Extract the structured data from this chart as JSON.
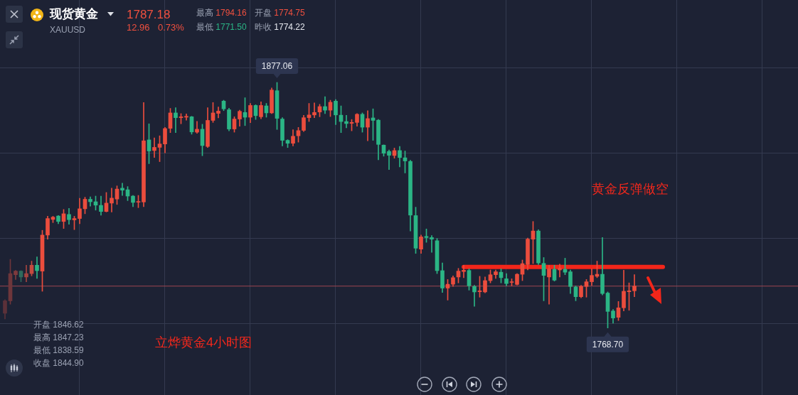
{
  "chart_data": {
    "type": "candlestick",
    "title": "现货黄金",
    "subtitle": "XAUUSD",
    "categories": [
      null,
      null,
      null,
      null,
      null,
      null,
      null,
      null,
      null,
      null,
      null,
      null,
      null,
      null,
      null,
      null,
      null,
      null,
      null,
      null,
      null,
      null,
      null,
      null,
      null,
      null,
      null,
      null,
      null,
      null,
      null,
      null,
      null,
      null,
      null,
      null,
      null,
      null,
      null,
      null,
      null,
      null,
      null,
      null,
      null,
      null,
      null,
      null,
      null,
      null,
      null,
      null,
      null,
      null,
      null,
      null,
      null,
      null,
      null,
      null,
      null,
      null,
      null,
      null,
      null,
      null,
      null,
      null,
      null,
      null,
      null,
      null,
      null,
      null,
      null,
      null,
      null,
      null,
      null,
      null,
      null,
      null,
      null,
      null,
      null,
      null,
      null,
      null,
      null,
      null,
      null,
      null,
      null,
      null,
      null,
      null,
      null,
      null,
      null,
      null,
      null,
      null,
      null,
      null,
      null,
      null,
      null,
      null,
      null,
      null,
      null,
      null,
      null,
      null,
      null,
      null,
      null,
      null,
      null
    ],
    "ohlc": [
      [
        1775.2,
        1781.2,
        1772.7,
        1780.7
      ],
      [
        1780.7,
        1799.0,
        1779.2,
        1792.7
      ],
      [
        1792.2,
        1794.1,
        1790.1,
        1793.8
      ],
      [
        1793.8,
        1794.0,
        1789.1,
        1791.2
      ],
      [
        1791.2,
        1796.4,
        1789.1,
        1792.7
      ],
      [
        1792.7,
        1798.2,
        1791.7,
        1796.4
      ],
      [
        1796.4,
        1800.1,
        1790.6,
        1794.0
      ],
      [
        1793.8,
        1811.8,
        1784.9,
        1809.7
      ],
      [
        1809.7,
        1818.0,
        1807.9,
        1817.0
      ],
      [
        1816.6,
        1818.0,
        1815.2,
        1817.6
      ],
      [
        1818.1,
        1818.3,
        1814.7,
        1815.7
      ],
      [
        1815.7,
        1821.0,
        1812.6,
        1819.1
      ],
      [
        1818.8,
        1821.5,
        1814.5,
        1816.5
      ],
      [
        1816.4,
        1818.0,
        1812.1,
        1817.0
      ],
      [
        1817.0,
        1825.9,
        1814.7,
        1821.3
      ],
      [
        1821.3,
        1826.4,
        1819.1,
        1825.5
      ],
      [
        1825.5,
        1826.6,
        1822.5,
        1824.4
      ],
      [
        1824.4,
        1826.9,
        1820.7,
        1822.9
      ],
      [
        1822.8,
        1826.9,
        1818.5,
        1820.1
      ],
      [
        1820.1,
        1828.5,
        1819.9,
        1823.8
      ],
      [
        1823.8,
        1830.4,
        1819.9,
        1826.0
      ],
      [
        1825.6,
        1831.4,
        1823.2,
        1830.0
      ],
      [
        1830.4,
        1832.6,
        1827.2,
        1829.5
      ],
      [
        1829.7,
        1831.1,
        1824.9,
        1826.9
      ],
      [
        1826.9,
        1827.2,
        1822.2,
        1824.1
      ],
      [
        1824.2,
        1827.2,
        1821.8,
        1824.5
      ],
      [
        1824.3,
        1868.2,
        1822.2,
        1851.3
      ],
      [
        1851.7,
        1858.8,
        1841.2,
        1846.8
      ],
      [
        1847.0,
        1852.6,
        1843.9,
        1848.4
      ],
      [
        1848.4,
        1853.5,
        1842.1,
        1849.9
      ],
      [
        1849.9,
        1857.2,
        1846.0,
        1856.7
      ],
      [
        1856.8,
        1865.6,
        1854.9,
        1863.6
      ],
      [
        1863.6,
        1865.9,
        1854.9,
        1861.5
      ],
      [
        1861.5,
        1863.3,
        1858.8,
        1861.9
      ],
      [
        1861.7,
        1863.2,
        1860.4,
        1862.1
      ],
      [
        1861.9,
        1862.1,
        1854.2,
        1855.2
      ],
      [
        1855.1,
        1859.9,
        1854.6,
        1856.4
      ],
      [
        1856.4,
        1858.6,
        1844.7,
        1849.2
      ],
      [
        1848.8,
        1865.9,
        1848.3,
        1860.3
      ],
      [
        1860.3,
        1868.2,
        1859.4,
        1863.6
      ],
      [
        1863.4,
        1866.2,
        1861.4,
        1864.4
      ],
      [
        1868.8,
        1869.2,
        1864.6,
        1865.4
      ],
      [
        1865.0,
        1865.7,
        1855.7,
        1856.5
      ],
      [
        1856.5,
        1861.9,
        1855.1,
        1860.9
      ],
      [
        1860.9,
        1864.8,
        1857.7,
        1864.3
      ],
      [
        1863.8,
        1870.3,
        1858.0,
        1861.7
      ],
      [
        1861.7,
        1867.8,
        1859.3,
        1866.9
      ],
      [
        1866.9,
        1867.2,
        1860.7,
        1862.4
      ],
      [
        1861.9,
        1868.5,
        1861.0,
        1866.9
      ],
      [
        1866.7,
        1867.8,
        1861.7,
        1863.6
      ],
      [
        1863.6,
        1874.6,
        1863.3,
        1873.7
      ],
      [
        1873.4,
        1877.06,
        1856.3,
        1861.2
      ],
      [
        1860.9,
        1861.5,
        1849.0,
        1851.5
      ],
      [
        1851.5,
        1851.8,
        1848.3,
        1850.2
      ],
      [
        1850.2,
        1856.2,
        1849.0,
        1853.3
      ],
      [
        1853.5,
        1857.2,
        1850.7,
        1855.8
      ],
      [
        1855.9,
        1862.5,
        1855.4,
        1861.5
      ],
      [
        1861.5,
        1867.8,
        1859.8,
        1862.7
      ],
      [
        1862.7,
        1868.0,
        1861.5,
        1863.8
      ],
      [
        1864.0,
        1867.4,
        1861.9,
        1866.4
      ],
      [
        1866.4,
        1870.8,
        1863.3,
        1864.8
      ],
      [
        1864.8,
        1869.2,
        1862.0,
        1868.3
      ],
      [
        1868.8,
        1869.5,
        1858.4,
        1862.7
      ],
      [
        1862.6,
        1866.7,
        1854.9,
        1859.8
      ],
      [
        1859.8,
        1862.5,
        1857.0,
        1858.9
      ],
      [
        1859.0,
        1860.7,
        1855.7,
        1859.4
      ],
      [
        1859.4,
        1863.3,
        1857.7,
        1863.0
      ],
      [
        1863.0,
        1863.6,
        1855.1,
        1857.3
      ],
      [
        1857.3,
        1864.6,
        1851.3,
        1861.1
      ],
      [
        1861.4,
        1865.4,
        1851.5,
        1860.3
      ],
      [
        1860.4,
        1860.7,
        1842.9,
        1849.7
      ],
      [
        1849.4,
        1849.5,
        1844.5,
        1845.8
      ],
      [
        1846.62,
        1847.23,
        1838.59,
        1844.9
      ],
      [
        1844.8,
        1848.1,
        1843.6,
        1847.0
      ],
      [
        1847.0,
        1848.8,
        1839.8,
        1843.9
      ],
      [
        1843.8,
        1846.8,
        1837.1,
        1842.4
      ],
      [
        1842.2,
        1842.7,
        1811.5,
        1818.5
      ],
      [
        1818.3,
        1822.0,
        1801.6,
        1803.9
      ],
      [
        1803.5,
        1809.7,
        1801.6,
        1808.9
      ],
      [
        1809.1,
        1812.4,
        1806.5,
        1808.6
      ],
      [
        1808.6,
        1809.5,
        1802.1,
        1807.9
      ],
      [
        1807.2,
        1808.2,
        1792.7,
        1794.0
      ],
      [
        1794.0,
        1797.4,
        1784.4,
        1786.3
      ],
      [
        1786.3,
        1790.1,
        1781.0,
        1788.0
      ],
      [
        1788.0,
        1791.7,
        1787.0,
        1790.9
      ],
      [
        1791.2,
        1795.0,
        1788.6,
        1793.8
      ],
      [
        1793.6,
        1796.4,
        1790.9,
        1794.2
      ],
      [
        1794.1,
        1794.8,
        1785.4,
        1787.3
      ],
      [
        1787.0,
        1787.5,
        1778.3,
        1784.6
      ],
      [
        1784.7,
        1791.5,
        1782.3,
        1785.1
      ],
      [
        1784.6,
        1791.2,
        1784.2,
        1789.6
      ],
      [
        1789.6,
        1794.3,
        1788.6,
        1792.2
      ],
      [
        1792.2,
        1794.3,
        1790.6,
        1793.5
      ],
      [
        1793.3,
        1794.8,
        1788.6,
        1790.9
      ],
      [
        1790.4,
        1792.7,
        1787.3,
        1788.3
      ],
      [
        1788.8,
        1790.4,
        1787.3,
        1789.1
      ],
      [
        1787.9,
        1792.7,
        1787.7,
        1792.4
      ],
      [
        1792.4,
        1798.7,
        1789.6,
        1797.1
      ],
      [
        1796.7,
        1808.4,
        1794.3,
        1807.9
      ],
      [
        1807.9,
        1815.7,
        1797.1,
        1811.5
      ],
      [
        1811.5,
        1812.1,
        1796.7,
        1797.4
      ],
      [
        1797.2,
        1799.8,
        1780.7,
        1791.9
      ],
      [
        1791.2,
        1796.4,
        1779.2,
        1794.8
      ],
      [
        1794.6,
        1796.4,
        1789.4,
        1789.8
      ],
      [
        1794.3,
        1796.9,
        1791.2,
        1795.0
      ],
      [
        1794.6,
        1799.5,
        1792.2,
        1793.3
      ],
      [
        1793.5,
        1794.3,
        1783.9,
        1787.0
      ],
      [
        1786.8,
        1787.3,
        1780.7,
        1782.5
      ],
      [
        1782.5,
        1787.5,
        1782.0,
        1787.0
      ],
      [
        1787.0,
        1790.1,
        1782.3,
        1789.1
      ],
      [
        1789.1,
        1794.8,
        1787.5,
        1791.9
      ],
      [
        1791.5,
        1798.2,
        1790.9,
        1792.4
      ],
      [
        1792.4,
        1808.6,
        1783.3,
        1783.9
      ],
      [
        1784.1,
        1784.6,
        1768.7,
        1776.0
      ],
      [
        1776.2,
        1776.9,
        1770.8,
        1773.1
      ],
      [
        1773.4,
        1780.4,
        1772.0,
        1777.6
      ],
      [
        1777.6,
        1794.16,
        1776.2,
        1784.9
      ],
      [
        1784.7,
        1788.6,
        1776.5,
        1785.1
      ],
      [
        1785.1,
        1792.2,
        1782.5,
        1787.18
      ]
    ],
    "colors": [
      "#5b3139",
      "#6e363b",
      "#7e3a3d",
      "#2e6a5c",
      "#a4443f",
      "#c44a3f",
      "#2bb585",
      "#eb4d3d",
      "#eb4d3d",
      "#eb4d3d",
      "#2bb585",
      "#eb4d3d",
      "#2bb585",
      "#eb4d3d",
      "#eb4d3d",
      "#eb4d3d",
      "#2bb585",
      "#2bb585",
      "#2bb585",
      "#eb4d3d",
      "#eb4d3d",
      "#eb4d3d",
      "#2bb585",
      "#2bb585",
      "#2bb585",
      "#eb4d3d",
      "#eb4d3d",
      "#2bb585",
      "#eb4d3d",
      "#eb4d3d",
      "#eb4d3d",
      "#eb4d3d",
      "#2bb585",
      "#eb4d3d",
      "#eb4d3d",
      "#2bb585",
      "#eb4d3d",
      "#2bb585",
      "#eb4d3d",
      "#eb4d3d",
      "#eb4d3d",
      "#2bb585",
      "#2bb585",
      "#eb4d3d",
      "#eb4d3d",
      "#2bb585",
      "#eb4d3d",
      "#2bb585",
      "#eb4d3d",
      "#2bb585",
      "#eb4d3d",
      "#2bb585",
      "#2bb585",
      "#2bb585",
      "#eb4d3d",
      "#eb4d3d",
      "#eb4d3d",
      "#eb4d3d",
      "#eb4d3d",
      "#eb4d3d",
      "#2bb585",
      "#eb4d3d",
      "#2bb585",
      "#2bb585",
      "#2bb585",
      "#eb4d3d",
      "#eb4d3d",
      "#2bb585",
      "#eb4d3d",
      "#2bb585",
      "#2bb585",
      "#2bb585",
      "#2bb585",
      "#eb4d3d",
      "#2bb585",
      "#2bb585",
      "#2bb585",
      "#2bb585",
      "#eb4d3d",
      "#2bb585",
      "#2bb585",
      "#2bb585",
      "#2bb585",
      "#eb4d3d",
      "#eb4d3d",
      "#eb4d3d",
      "#eb4d3d",
      "#2bb585",
      "#2bb585",
      "#eb4d3d",
      "#eb4d3d",
      "#eb4d3d",
      "#eb4d3d",
      "#2bb585",
      "#2bb585",
      "#eb4d3d",
      "#eb4d3d",
      "#eb4d3d",
      "#eb4d3d",
      "#eb4d3d",
      "#2bb585",
      "#2bb585",
      "#eb4d3d",
      "#2bb585",
      "#eb4d3d",
      "#2bb585",
      "#2bb585",
      "#2bb585",
      "#eb4d3d",
      "#eb4d3d",
      "#eb4d3d",
      "#eb4d3d",
      "#2bb585",
      "#2bb585",
      "#2bb585",
      "#eb4d3d",
      "#eb4d3d",
      "#eb4d3d",
      "#eb4d3d"
    ],
    "ref_lines": [
      {
        "axis": "y",
        "value": 1795.6,
        "color": "#f3261a"
      },
      {
        "axis": "y",
        "value": 1787.18,
        "color": "#9c4452"
      }
    ],
    "annotations": [
      {
        "text": "1877.06",
        "y": 1877.06
      },
      {
        "text": "1768.70",
        "y": 1768.7
      },
      "黄金反弹做空",
      "立烨黄金4小时图",
      "1787.18",
      "12.96",
      "0.73%",
      "最高 1794.16",
      "开盘 1774.75",
      "最低 1771.50",
      "昨收 1774.22",
      "开盘 1846.62",
      "最高 1847.23",
      "最低 1838.59",
      "收盘 1844.90"
    ],
    "grid": true,
    "tick_labels": false
  }
}
